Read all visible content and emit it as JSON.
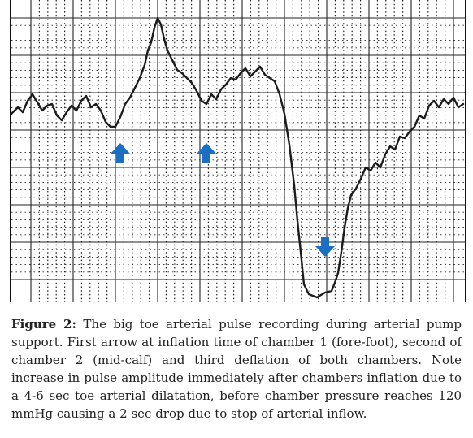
{
  "figure": {
    "label": "Figure 2:",
    "caption": "The big toe arterial pulse recording during arterial pump support. First arrow at inflation time of chamber 1 (fore-foot), second of chamber 2 (mid-calf) and third deflation of both chambers. Note increase in pulse amplitude immediately after chambers inflation due to a 4-6 sec toe arterial dilatation, before chamber pressure reaches 120 mmHg causing a 2 sec drop due to stop of arterial inflow.",
    "arrows": [
      {
        "name": "inflation-chamber-1",
        "direction": "up",
        "color": "#1a6fc4"
      },
      {
        "name": "inflation-chamber-2",
        "direction": "up",
        "color": "#1a6fc4"
      },
      {
        "name": "deflation-both-chambers",
        "direction": "down",
        "color": "#1a6fc4"
      }
    ],
    "colors": {
      "trace": "#1c1c1c",
      "grid": "#222222",
      "arrow": "#1a6fc4"
    }
  }
}
